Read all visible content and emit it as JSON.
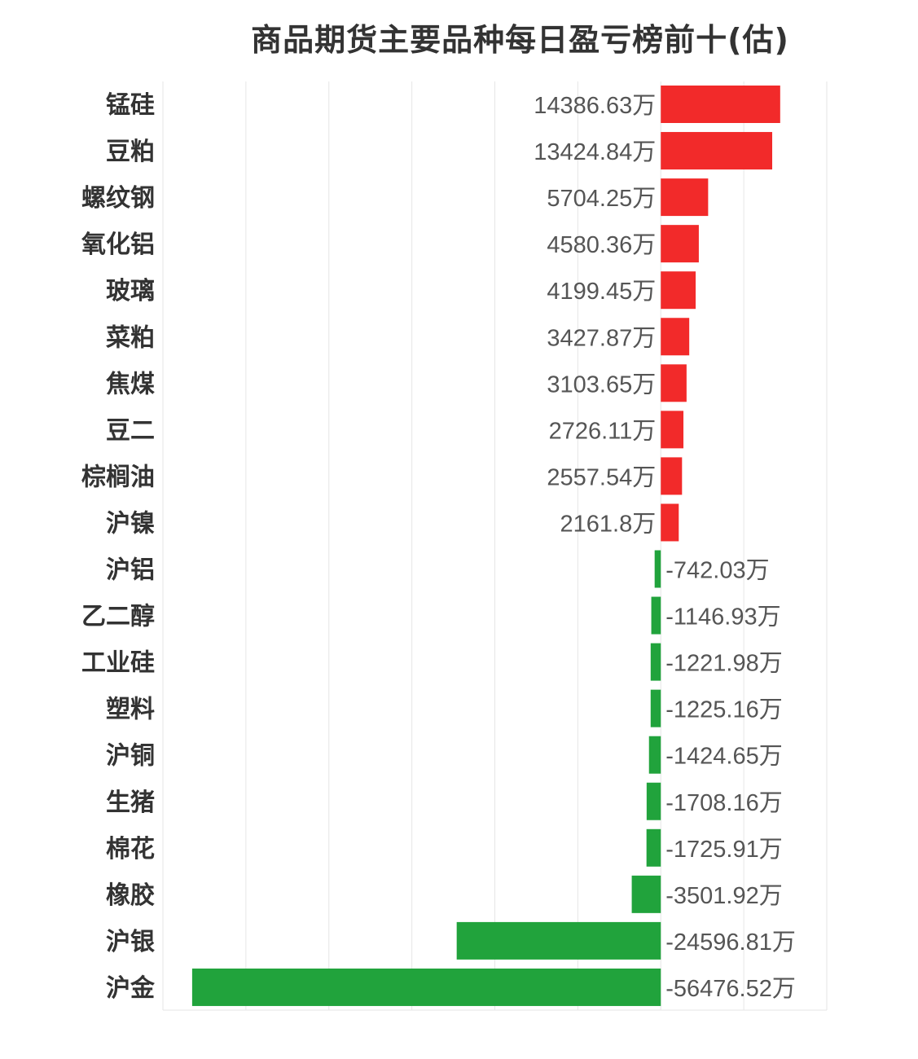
{
  "chart_data": {
    "type": "bar",
    "orientation": "horizontal",
    "title": "商品期货主要品种每日盈亏榜前十(估)",
    "unit_suffix": "万",
    "categories": [
      "锰硅",
      "豆粕",
      "螺纹钢",
      "氧化铝",
      "玻璃",
      "菜粕",
      "焦煤",
      "豆二",
      "棕榈油",
      "沪镍",
      "沪铝",
      "乙二醇",
      "工业硅",
      "塑料",
      "沪铜",
      "生猪",
      "棉花",
      "橡胶",
      "沪银",
      "沪金"
    ],
    "values": [
      14386.63,
      13424.84,
      5704.25,
      4580.36,
      4199.45,
      3427.87,
      3103.65,
      2726.11,
      2557.54,
      2161.8,
      -742.03,
      -1146.93,
      -1221.98,
      -1225.16,
      -1424.65,
      -1708.16,
      -1725.91,
      -3501.92,
      -24596.81,
      -56476.52
    ],
    "value_labels": [
      "14386.63万",
      "13424.84万",
      "5704.25万",
      "4580.36万",
      "4199.45万",
      "3427.87万",
      "3103.65万",
      "2726.11万",
      "2557.54万",
      "2161.8万",
      "-742.03万",
      "-1146.93万",
      "-1221.98万",
      "-1225.16万",
      "-1424.65万",
      "-1708.16万",
      "-1725.91万",
      "-3501.92万",
      "-24596.81万",
      "-56476.52万"
    ],
    "xlim": [
      -60000,
      20000
    ],
    "grid": true,
    "legend": "none",
    "colors": {
      "positive": "#f22a2a",
      "negative": "#21a33c"
    }
  }
}
